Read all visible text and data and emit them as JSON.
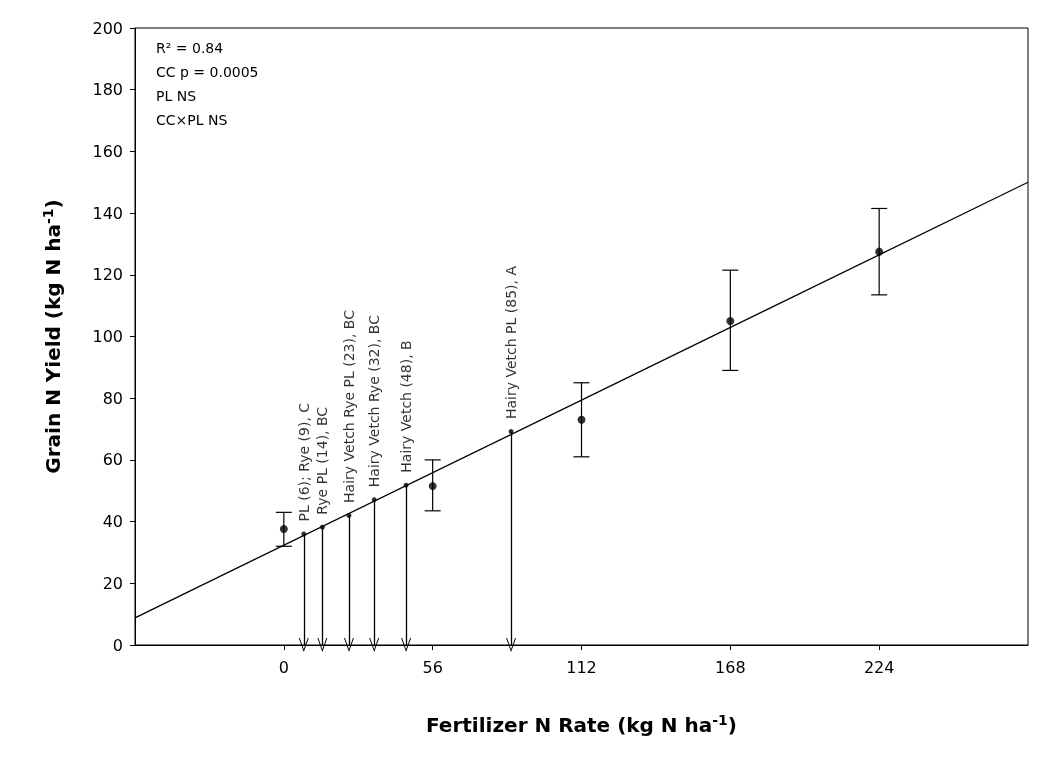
{
  "chart_data": {
    "type": "scatter",
    "xlabel": "Fertilizer N Rate (kg N ha$^{-1}$)",
    "ylabel": "Grain N Yield (kg N ha$^{-1}$)",
    "xlim": [
      -56,
      280
    ],
    "xticks": [
      0,
      56,
      112,
      168,
      224
    ],
    "ylim": [
      0,
      200
    ],
    "yticks": [
      0,
      20,
      40,
      60,
      80,
      100,
      120,
      140,
      160,
      180,
      200
    ],
    "grid": false,
    "marker": "circle",
    "series": [
      {
        "color": "#000000",
        "x": [
          0,
          56,
          112,
          168,
          224
        ],
        "values": [
          37.6,
          51.5,
          73,
          105,
          127.5
        ],
        "errors": [
          [
            32,
            43
          ],
          [
            43.5,
            60
          ],
          [
            61,
            85
          ],
          [
            89,
            121.5
          ],
          [
            113.5,
            141.5
          ]
        ]
      },
      {
        "type": "line",
        "color": "#000000",
        "x": [
          -56,
          280
        ],
        "values": [
          8.8,
          150
        ],
        "line_style": "solid",
        "marker": "none"
      }
    ],
    "annotations": [
      "R² = 0.84",
      "CC p = 0.0005",
      "PL NS",
      "CC×PL NS",
      {
        "text": "PL (6); Rye (9), C",
        "x": 7.5,
        "y": 36
      },
      {
        "text": "Rye PL (14), BC",
        "x": 14.5,
        "y": 38.2
      },
      {
        "text": "Hairy Vetch Rye PL (23), BC",
        "x": 24.5,
        "y": 42
      },
      {
        "text": "Hairy Vetch Rye (32), BC",
        "x": 34,
        "y": 47.1
      },
      {
        "text": "Hairy Vetch (48), B",
        "x": 46,
        "y": 51.8
      },
      {
        "text": "Hairy Vetch PL (85), A",
        "x": 85.5,
        "y": 69.2
      }
    ]
  }
}
